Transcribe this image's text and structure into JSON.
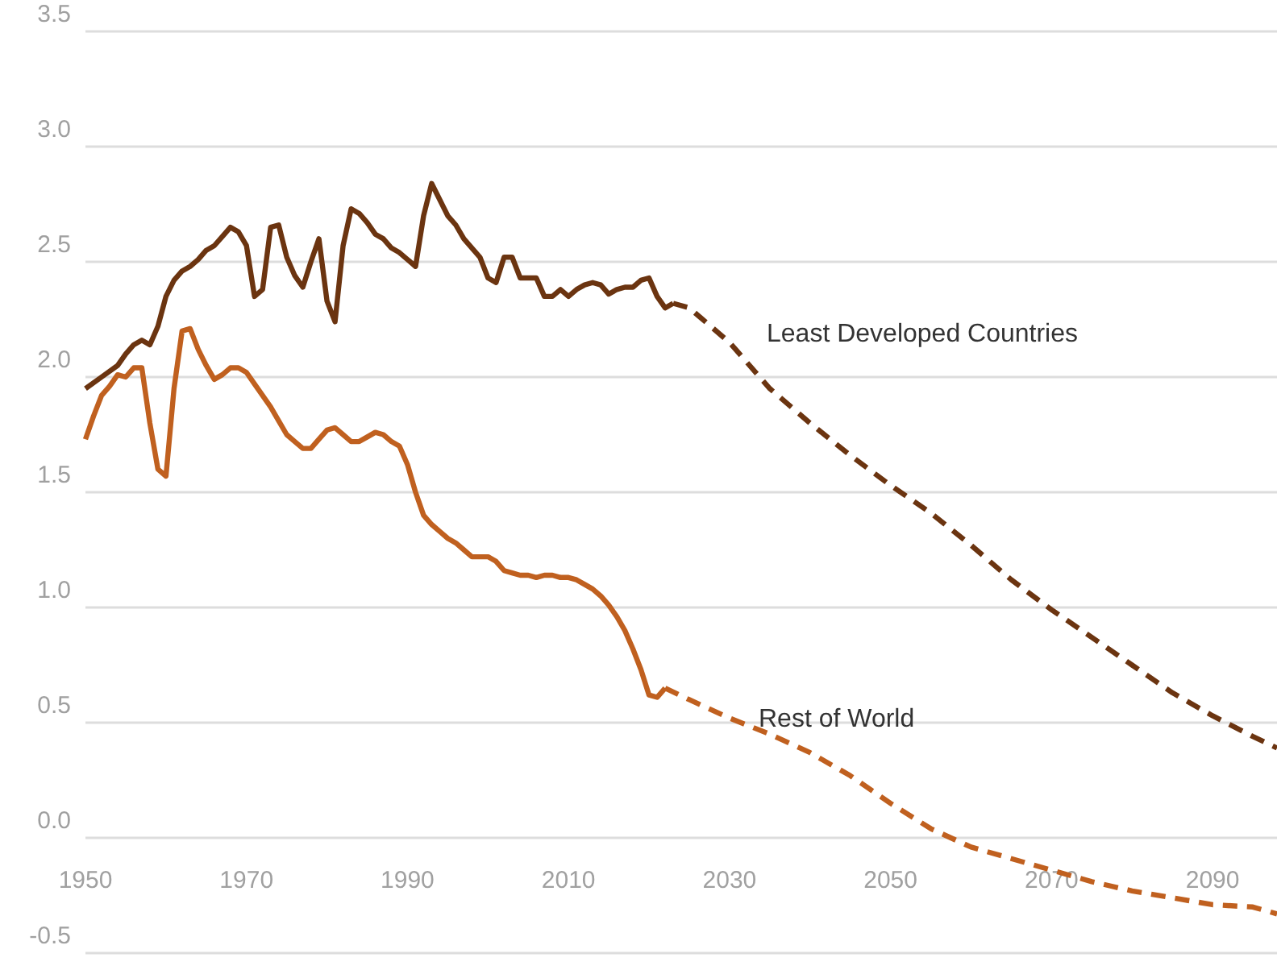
{
  "chart_data": {
    "type": "line",
    "xlim": [
      1950,
      2098
    ],
    "xticks": [
      1950,
      1970,
      1990,
      2010,
      2030,
      2050,
      2070,
      2090
    ],
    "ylim": [
      -0.5,
      3.5
    ],
    "yticks": [
      {
        "value": -0.5,
        "label": "-0.5"
      },
      {
        "value": 0,
        "label": "0.0"
      },
      {
        "value": 0.5,
        "label": "0.5"
      },
      {
        "value": 1,
        "label": "1.0"
      },
      {
        "value": 1.5,
        "label": "1.5"
      },
      {
        "value": 2,
        "label": "2.0"
      },
      {
        "value": 2.5,
        "label": "2.5"
      },
      {
        "value": 3,
        "label": "3.0"
      },
      {
        "value": 3.5,
        "label": "3.5"
      }
    ],
    "grid": "y",
    "marker": "none",
    "series": [
      {
        "color": "#6b3410",
        "line_style": "solid",
        "x": [
          1950,
          1952,
          1954,
          1955,
          1956,
          1957,
          1958,
          1959,
          1960,
          1961,
          1962,
          1963,
          1964,
          1965,
          1966,
          1967,
          1968,
          1969,
          1970,
          1971,
          1972,
          1973,
          1974,
          1975,
          1976,
          1977,
          1978,
          1979,
          1980,
          1981,
          1982,
          1983,
          1984,
          1985,
          1986,
          1987,
          1988,
          1989,
          1990,
          1991,
          1992,
          1993,
          1994,
          1995,
          1996,
          1997,
          1998,
          1999,
          2000,
          2001,
          2002,
          2003,
          2004,
          2005,
          2006,
          2007,
          2008,
          2009,
          2010,
          2011,
          2012,
          2013,
          2014,
          2015,
          2016,
          2017,
          2018,
          2019,
          2020,
          2021,
          2022,
          2023
        ],
        "values": [
          1.95,
          2.0,
          2.05,
          2.1,
          2.14,
          2.16,
          2.14,
          2.22,
          2.35,
          2.42,
          2.46,
          2.48,
          2.51,
          2.55,
          2.57,
          2.61,
          2.65,
          2.63,
          2.57,
          2.35,
          2.38,
          2.65,
          2.66,
          2.52,
          2.44,
          2.39,
          2.5,
          2.6,
          2.33,
          2.24,
          2.57,
          2.73,
          2.71,
          2.67,
          2.62,
          2.6,
          2.56,
          2.54,
          2.51,
          2.48,
          2.7,
          2.84,
          2.77,
          2.7,
          2.66,
          2.6,
          2.56,
          2.52,
          2.43,
          2.41,
          2.52,
          2.52,
          2.43,
          2.43,
          2.43,
          2.35,
          2.35,
          2.38,
          2.35,
          2.38,
          2.4,
          2.41,
          2.4,
          2.36,
          2.38,
          2.39,
          2.39,
          2.42,
          2.43,
          2.35,
          2.3,
          2.32
        ]
      },
      {
        "name": "Least Developed Countries",
        "color": "#6b3410",
        "line_style": "dashed",
        "x": [
          2023,
          2025,
          2030,
          2035,
          2040,
          2045,
          2050,
          2055,
          2060,
          2065,
          2070,
          2075,
          2080,
          2085,
          2090,
          2095,
          2098
        ],
        "values": [
          2.32,
          2.3,
          2.15,
          1.95,
          1.8,
          1.66,
          1.53,
          1.41,
          1.27,
          1.12,
          0.99,
          0.87,
          0.75,
          0.63,
          0.53,
          0.44,
          0.39
        ]
      },
      {
        "color": "#c0601f",
        "line_style": "solid",
        "x": [
          1950,
          1951,
          1952,
          1953,
          1954,
          1955,
          1956,
          1957,
          1958,
          1959,
          1960,
          1961,
          1962,
          1963,
          1964,
          1965,
          1966,
          1967,
          1968,
          1969,
          1970,
          1971,
          1972,
          1973,
          1974,
          1975,
          1976,
          1977,
          1978,
          1979,
          1980,
          1981,
          1982,
          1983,
          1984,
          1985,
          1986,
          1987,
          1988,
          1989,
          1990,
          1991,
          1992,
          1993,
          1994,
          1995,
          1996,
          1997,
          1998,
          1999,
          2000,
          2001,
          2002,
          2003,
          2004,
          2005,
          2006,
          2007,
          2008,
          2009,
          2010,
          2011,
          2012,
          2013,
          2014,
          2015,
          2016,
          2017,
          2018,
          2019,
          2020,
          2021,
          2022
        ],
        "values": [
          1.73,
          1.83,
          1.92,
          1.96,
          2.01,
          2.0,
          2.04,
          2.04,
          1.8,
          1.6,
          1.57,
          1.95,
          2.2,
          2.21,
          2.12,
          2.05,
          1.99,
          2.01,
          2.04,
          2.04,
          2.02,
          1.97,
          1.92,
          1.87,
          1.81,
          1.75,
          1.72,
          1.69,
          1.69,
          1.73,
          1.77,
          1.78,
          1.75,
          1.72,
          1.72,
          1.74,
          1.76,
          1.75,
          1.72,
          1.7,
          1.62,
          1.5,
          1.4,
          1.36,
          1.33,
          1.3,
          1.28,
          1.25,
          1.22,
          1.22,
          1.22,
          1.2,
          1.16,
          1.15,
          1.14,
          1.14,
          1.13,
          1.14,
          1.14,
          1.13,
          1.13,
          1.12,
          1.1,
          1.08,
          1.05,
          1.01,
          0.96,
          0.9,
          0.82,
          0.73,
          0.62,
          0.61,
          0.65
        ]
      },
      {
        "name": "Rest of World",
        "color": "#c0601f",
        "line_style": "dashed",
        "x": [
          2022,
          2025,
          2030,
          2035,
          2040,
          2045,
          2050,
          2055,
          2060,
          2065,
          2070,
          2075,
          2080,
          2085,
          2090,
          2095,
          2098
        ],
        "values": [
          0.65,
          0.6,
          0.52,
          0.45,
          0.37,
          0.27,
          0.15,
          0.04,
          -0.04,
          -0.09,
          -0.14,
          -0.19,
          -0.23,
          -0.26,
          -0.29,
          -0.3,
          -0.33
        ]
      }
    ]
  }
}
